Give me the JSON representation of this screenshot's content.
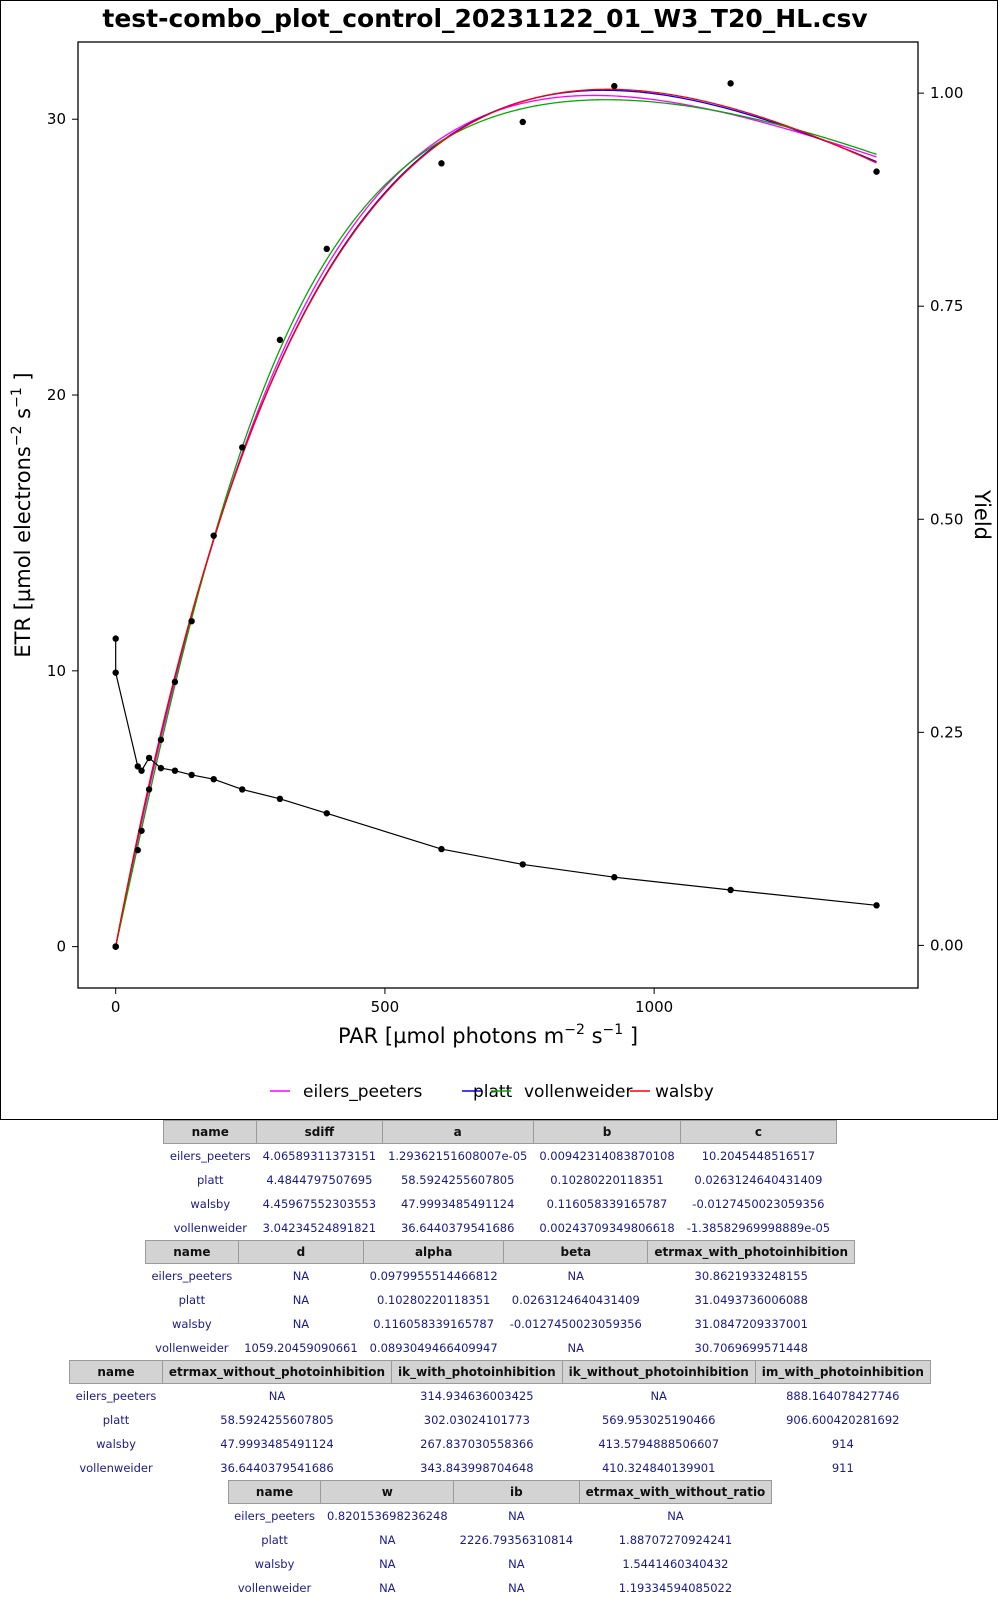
{
  "chart_data": {
    "type": "line",
    "title": "test-combo_plot_control_20231122_01_W3_T20_HL.csv",
    "xlabel": "PAR [µmol photons m",
    "xlabel_sup1": "−2",
    "xlabel_mid": " s",
    "xlabel_sup2": "−1",
    "xlabel_end": " ]",
    "ylabel": "ETR [µmol electrons",
    "ylabel_sup1": "−2",
    "ylabel_mid": " s",
    "ylabel_sup2": "−1",
    "ylabel_end": " ]",
    "y2label": "Yield",
    "xlim": [
      -70,
      1490
    ],
    "ylim": [
      -1.5,
      32.8
    ],
    "y2lim": [
      -0.05,
      1.06
    ],
    "x_ticks": [
      0,
      500,
      1000
    ],
    "x_tick_labels": [
      "0",
      "500",
      "1000"
    ],
    "y_ticks": [
      0,
      10,
      20,
      30
    ],
    "y_tick_labels": [
      "0",
      "10",
      "20",
      "30"
    ],
    "y2_ticks": [
      0,
      0.25,
      0.5,
      0.75,
      1.0
    ],
    "y2_tick_labels": [
      "0.00",
      "0.25",
      "0.50",
      "0.75",
      "1.00"
    ],
    "grid": false,
    "legend_position": "bottom",
    "etr_points": {
      "x": [
        0,
        0,
        0,
        41,
        48,
        62,
        84,
        110,
        141,
        182,
        235,
        305,
        392,
        605,
        756,
        926,
        1142,
        1413
      ],
      "y": [
        0,
        0,
        0,
        3.5,
        4.2,
        5.7,
        7.5,
        9.6,
        11.8,
        14.9,
        18.1,
        22.0,
        25.3,
        28.4,
        29.9,
        31.2,
        31.3,
        28.1
      ]
    },
    "yield_series": {
      "x": [
        0,
        0,
        41,
        48,
        62,
        84,
        110,
        141,
        182,
        235,
        305,
        392,
        605,
        756,
        926,
        1142,
        1413
      ],
      "y": [
        0.36,
        0.32,
        0.21,
        0.205,
        0.22,
        0.208,
        0.205,
        0.2,
        0.195,
        0.183,
        0.172,
        0.155,
        0.113,
        0.095,
        0.08,
        0.065,
        0.047
      ]
    },
    "series": [
      {
        "name": "eilers_peeters",
        "color": "#ff00ff",
        "model": "ep",
        "params": {
          "a": 1.29362151608007e-05,
          "b": 0.00942314083870108,
          "c": 10.2045448516517
        }
      },
      {
        "name": "platt",
        "color": "#0000ff",
        "model": "platt",
        "params": {
          "ps": 58.5924255607805,
          "alpha": 0.10280220118351,
          "beta": 0.0263124640431409
        }
      },
      {
        "name": "vollenweider",
        "color": "#00aa00",
        "model": "voll",
        "params": {
          "pmax": 36.6440379541686,
          "a": 0.00243709349806618,
          "alpha": -1.38582969998889e-05,
          "n": 1059.20459090661
        }
      },
      {
        "name": "walsby",
        "color": "#ff0000",
        "model": "walsby",
        "params": {
          "etrmax": 47.9993485491124,
          "alpha": 0.116058339165787,
          "beta": -0.0127450023059356
        }
      }
    ]
  },
  "tables": [
    {
      "headers": [
        "name",
        "sdiff",
        "a",
        "b",
        "c"
      ],
      "rows": [
        [
          "eilers_peeters",
          "4.06589311373151",
          "1.29362151608007e-05",
          "0.00942314083870108",
          "10.2045448516517"
        ],
        [
          "platt",
          "4.4844797507695",
          "58.5924255607805",
          "0.10280220118351",
          "0.0263124640431409"
        ],
        [
          "walsby",
          "4.45967552303553",
          "47.9993485491124",
          "0.116058339165787",
          "-0.0127450023059356"
        ],
        [
          "vollenweider",
          "3.04234524891821",
          "36.6440379541686",
          "0.00243709349806618",
          "-1.38582969998889e-05"
        ]
      ]
    },
    {
      "headers": [
        "name",
        "d",
        "alpha",
        "beta",
        "etrmax_with_photoinhibition"
      ],
      "rows": [
        [
          "eilers_peeters",
          "NA",
          "0.0979955514466812",
          "NA",
          "30.8621933248155"
        ],
        [
          "platt",
          "NA",
          "0.10280220118351",
          "0.0263124640431409",
          "31.0493736006088"
        ],
        [
          "walsby",
          "NA",
          "0.116058339165787",
          "-0.0127450023059356",
          "31.0847209337001"
        ],
        [
          "vollenweider",
          "1059.20459090661",
          "0.0893049466409947",
          "NA",
          "30.7069699571448"
        ]
      ]
    },
    {
      "headers": [
        "name",
        "etrmax_without_photoinhibition",
        "ik_with_photoinhibition",
        "ik_without_photoinhibition",
        "im_with_photoinhibition"
      ],
      "rows": [
        [
          "eilers_peeters",
          "NA",
          "314.934636003425",
          "NA",
          "888.164078427746"
        ],
        [
          "platt",
          "58.5924255607805",
          "302.03024101773",
          "569.953025190466",
          "906.600420281692"
        ],
        [
          "walsby",
          "47.9993485491124",
          "267.837030558366",
          "413.5794888506607",
          "914"
        ],
        [
          "vollenweider",
          "36.6440379541686",
          "343.843998704648",
          "410.324840139901",
          "911"
        ]
      ]
    },
    {
      "headers": [
        "name",
        "w",
        "ib",
        "etrmax_with_without_ratio"
      ],
      "rows": [
        [
          "eilers_peeters",
          "0.820153698236248",
          "NA",
          "NA"
        ],
        [
          "platt",
          "NA",
          "2226.79356310814",
          "1.88707270924241"
        ],
        [
          "walsby",
          "NA",
          "NA",
          "1.5441460340432"
        ],
        [
          "vollenweider",
          "NA",
          "NA",
          "1.19334594085022"
        ]
      ]
    }
  ]
}
